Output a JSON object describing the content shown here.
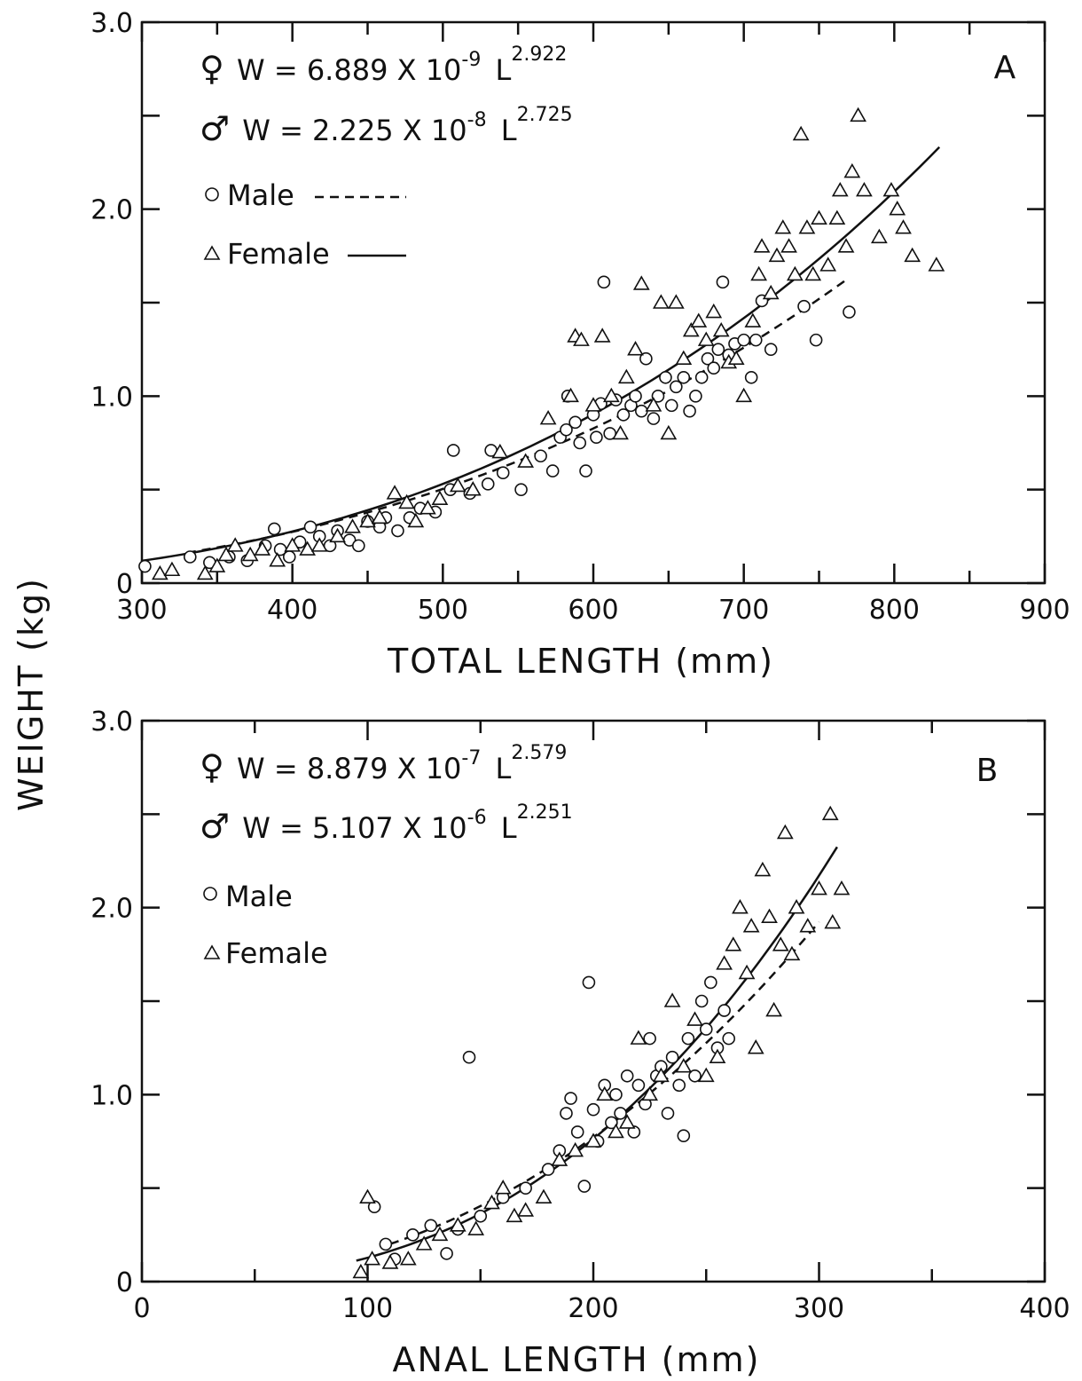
{
  "figure": {
    "ylabel": "WEIGHT (kg)"
  },
  "chart_data": [
    {
      "type": "scatter",
      "panel": "A",
      "xlabel": "TOTAL LENGTH (mm)",
      "ylabel": "WEIGHT (kg)",
      "xlim": [
        300,
        900
      ],
      "ylim": [
        0,
        3.0
      ],
      "x_ticks": [
        300,
        400,
        500,
        600,
        700,
        800,
        900
      ],
      "x_tick_labels": [
        "300",
        "400",
        "500",
        "600",
        "700",
        "800",
        "900"
      ],
      "y_ticks": [
        0,
        1.0,
        2.0,
        3.0
      ],
      "y_tick_labels": [
        "0",
        "1.0",
        "2.0",
        "3.0"
      ],
      "grid": false,
      "legend_position": "top-left",
      "equations": [
        {
          "symbol": "♀",
          "text": "W = 6.889 X 10",
          "exponent": "-9",
          "tail": " L",
          "power": "2.922"
        },
        {
          "symbol": "♂",
          "text": "W = 2.225 X 10",
          "exponent": "-8",
          "tail": " L",
          "power": "2.725"
        }
      ],
      "legend": [
        {
          "label": "Male",
          "marker": "circle",
          "line": "dashed"
        },
        {
          "label": "Female",
          "marker": "triangle",
          "line": "solid"
        }
      ],
      "fits": [
        {
          "name": "Female",
          "a": 6.889e-09,
          "b": 2.922,
          "x_range": [
            300,
            830
          ],
          "style": "solid"
        },
        {
          "name": "Male",
          "a": 2.225e-08,
          "b": 2.725,
          "x_range": [
            330,
            770
          ],
          "style": "dashed"
        }
      ],
      "series": [
        {
          "name": "Male",
          "marker": "circle",
          "points": [
            [
              302,
              0.09
            ],
            [
              332,
              0.14
            ],
            [
              345,
              0.11
            ],
            [
              358,
              0.14
            ],
            [
              370,
              0.12
            ],
            [
              382,
              0.2
            ],
            [
              388,
              0.29
            ],
            [
              392,
              0.18
            ],
            [
              398,
              0.14
            ],
            [
              405,
              0.22
            ],
            [
              412,
              0.3
            ],
            [
              418,
              0.25
            ],
            [
              425,
              0.2
            ],
            [
              430,
              0.28
            ],
            [
              438,
              0.23
            ],
            [
              444,
              0.2
            ],
            [
              450,
              0.33
            ],
            [
              458,
              0.3
            ],
            [
              462,
              0.35
            ],
            [
              470,
              0.28
            ],
            [
              478,
              0.35
            ],
            [
              485,
              0.4
            ],
            [
              495,
              0.38
            ],
            [
              505,
              0.5
            ],
            [
              507,
              0.71
            ],
            [
              518,
              0.48
            ],
            [
              530,
              0.53
            ],
            [
              532,
              0.71
            ],
            [
              540,
              0.59
            ],
            [
              552,
              0.5
            ],
            [
              565,
              0.68
            ],
            [
              573,
              0.6
            ],
            [
              578,
              0.78
            ],
            [
              582,
              0.82
            ],
            [
              583,
              1.0
            ],
            [
              588,
              0.86
            ],
            [
              591,
              0.75
            ],
            [
              595,
              0.6
            ],
            [
              600,
              0.9
            ],
            [
              602,
              0.78
            ],
            [
              605,
              0.96
            ],
            [
              607,
              1.61
            ],
            [
              611,
              0.8
            ],
            [
              615,
              0.98
            ],
            [
              620,
              0.9
            ],
            [
              625,
              0.95
            ],
            [
              628,
              1.0
            ],
            [
              632,
              0.92
            ],
            [
              635,
              1.2
            ],
            [
              640,
              0.88
            ],
            [
              643,
              1.0
            ],
            [
              648,
              1.1
            ],
            [
              652,
              0.95
            ],
            [
              655,
              1.05
            ],
            [
              660,
              1.1
            ],
            [
              664,
              0.92
            ],
            [
              668,
              1.0
            ],
            [
              672,
              1.1
            ],
            [
              676,
              1.2
            ],
            [
              680,
              1.15
            ],
            [
              683,
              1.25
            ],
            [
              686,
              1.61
            ],
            [
              690,
              1.22
            ],
            [
              694,
              1.28
            ],
            [
              700,
              1.3
            ],
            [
              705,
              1.1
            ],
            [
              708,
              1.3
            ],
            [
              712,
              1.51
            ],
            [
              718,
              1.25
            ],
            [
              740,
              1.48
            ],
            [
              748,
              1.3
            ],
            [
              770,
              1.45
            ]
          ]
        },
        {
          "name": "Female",
          "marker": "triangle",
          "points": [
            [
              312,
              0.05
            ],
            [
              320,
              0.07
            ],
            [
              342,
              0.05
            ],
            [
              350,
              0.09
            ],
            [
              356,
              0.15
            ],
            [
              362,
              0.2
            ],
            [
              372,
              0.15
            ],
            [
              380,
              0.18
            ],
            [
              390,
              0.12
            ],
            [
              400,
              0.2
            ],
            [
              410,
              0.18
            ],
            [
              418,
              0.2
            ],
            [
              430,
              0.25
            ],
            [
              440,
              0.3
            ],
            [
              450,
              0.33
            ],
            [
              458,
              0.35
            ],
            [
              468,
              0.48
            ],
            [
              476,
              0.43
            ],
            [
              482,
              0.33
            ],
            [
              490,
              0.4
            ],
            [
              498,
              0.45
            ],
            [
              510,
              0.52
            ],
            [
              520,
              0.5
            ],
            [
              538,
              0.7
            ],
            [
              555,
              0.65
            ],
            [
              570,
              0.88
            ],
            [
              585,
              1.0
            ],
            [
              588,
              1.32
            ],
            [
              592,
              1.3
            ],
            [
              600,
              0.95
            ],
            [
              606,
              1.32
            ],
            [
              612,
              1.0
            ],
            [
              618,
              0.8
            ],
            [
              622,
              1.1
            ],
            [
              628,
              1.25
            ],
            [
              632,
              1.6
            ],
            [
              640,
              0.95
            ],
            [
              645,
              1.5
            ],
            [
              650,
              0.8
            ],
            [
              655,
              1.5
            ],
            [
              660,
              1.2
            ],
            [
              665,
              1.35
            ],
            [
              670,
              1.4
            ],
            [
              675,
              1.3
            ],
            [
              680,
              1.45
            ],
            [
              685,
              1.35
            ],
            [
              690,
              1.18
            ],
            [
              695,
              1.2
            ],
            [
              700,
              1.0
            ],
            [
              706,
              1.4
            ],
            [
              710,
              1.65
            ],
            [
              712,
              1.8
            ],
            [
              718,
              1.55
            ],
            [
              722,
              1.75
            ],
            [
              726,
              1.9
            ],
            [
              730,
              1.8
            ],
            [
              734,
              1.65
            ],
            [
              738,
              2.4
            ],
            [
              742,
              1.9
            ],
            [
              746,
              1.65
            ],
            [
              750,
              1.95
            ],
            [
              756,
              1.7
            ],
            [
              762,
              1.95
            ],
            [
              764,
              2.1
            ],
            [
              768,
              1.8
            ],
            [
              772,
              2.2
            ],
            [
              776,
              2.5
            ],
            [
              780,
              2.1
            ],
            [
              790,
              1.85
            ],
            [
              798,
              2.1
            ],
            [
              802,
              2.0
            ],
            [
              806,
              1.9
            ],
            [
              812,
              1.75
            ],
            [
              828,
              1.7
            ]
          ]
        }
      ]
    },
    {
      "type": "scatter",
      "panel": "B",
      "xlabel": "ANAL LENGTH (mm)",
      "ylabel": "WEIGHT (kg)",
      "xlim": [
        0,
        400
      ],
      "ylim": [
        0,
        3.0
      ],
      "x_ticks": [
        0,
        100,
        200,
        300,
        400
      ],
      "x_tick_labels": [
        "0",
        "100",
        "200",
        "300",
        "400"
      ],
      "y_ticks": [
        0,
        1.0,
        2.0,
        3.0
      ],
      "y_tick_labels": [
        "0",
        "1.0",
        "2.0",
        "3.0"
      ],
      "grid": false,
      "legend_position": "top-left",
      "equations": [
        {
          "symbol": "♀",
          "text": "W = 8.879 X 10",
          "exponent": "-7",
          "tail": " L",
          "power": "2.579"
        },
        {
          "symbol": "♂",
          "text": "W = 5.107 X 10",
          "exponent": "-6",
          "tail": " L",
          "power": "2.251"
        }
      ],
      "legend": [
        {
          "label": "Male",
          "marker": "circle",
          "line": "none"
        },
        {
          "label": "Female",
          "marker": "triangle",
          "line": "none"
        }
      ],
      "fits": [
        {
          "name": "Female",
          "a": 8.879e-07,
          "b": 2.579,
          "x_range": [
            95,
            308
          ],
          "style": "solid"
        },
        {
          "name": "Male",
          "a": 5.107e-06,
          "b": 2.251,
          "x_range": [
            110,
            300
          ],
          "style": "dashed"
        }
      ],
      "series": [
        {
          "name": "Male",
          "marker": "circle",
          "points": [
            [
              103,
              0.4
            ],
            [
              108,
              0.2
            ],
            [
              112,
              0.12
            ],
            [
              120,
              0.25
            ],
            [
              128,
              0.3
            ],
            [
              135,
              0.15
            ],
            [
              140,
              0.28
            ],
            [
              145,
              1.2
            ],
            [
              150,
              0.35
            ],
            [
              160,
              0.45
            ],
            [
              170,
              0.5
            ],
            [
              180,
              0.6
            ],
            [
              185,
              0.7
            ],
            [
              188,
              0.9
            ],
            [
              190,
              0.98
            ],
            [
              193,
              0.8
            ],
            [
              196,
              0.51
            ],
            [
              198,
              1.6
            ],
            [
              200,
              0.92
            ],
            [
              202,
              0.75
            ],
            [
              205,
              1.05
            ],
            [
              208,
              0.85
            ],
            [
              210,
              1.0
            ],
            [
              212,
              0.9
            ],
            [
              215,
              1.1
            ],
            [
              218,
              0.8
            ],
            [
              220,
              1.05
            ],
            [
              223,
              0.95
            ],
            [
              225,
              1.3
            ],
            [
              228,
              1.1
            ],
            [
              230,
              1.15
            ],
            [
              233,
              0.9
            ],
            [
              235,
              1.2
            ],
            [
              238,
              1.05
            ],
            [
              240,
              0.78
            ],
            [
              242,
              1.3
            ],
            [
              245,
              1.1
            ],
            [
              248,
              1.5
            ],
            [
              250,
              1.35
            ],
            [
              252,
              1.6
            ],
            [
              255,
              1.25
            ],
            [
              258,
              1.45
            ],
            [
              260,
              1.3
            ]
          ]
        },
        {
          "name": "Female",
          "marker": "triangle",
          "points": [
            [
              97,
              0.05
            ],
            [
              100,
              0.45
            ],
            [
              102,
              0.12
            ],
            [
              110,
              0.1
            ],
            [
              118,
              0.12
            ],
            [
              125,
              0.2
            ],
            [
              132,
              0.25
            ],
            [
              140,
              0.3
            ],
            [
              148,
              0.28
            ],
            [
              155,
              0.42
            ],
            [
              160,
              0.5
            ],
            [
              165,
              0.35
            ],
            [
              170,
              0.38
            ],
            [
              178,
              0.45
            ],
            [
              185,
              0.65
            ],
            [
              192,
              0.7
            ],
            [
              200,
              0.75
            ],
            [
              205,
              1.0
            ],
            [
              210,
              0.8
            ],
            [
              215,
              0.85
            ],
            [
              220,
              1.3
            ],
            [
              225,
              1.0
            ],
            [
              230,
              1.1
            ],
            [
              235,
              1.5
            ],
            [
              240,
              1.15
            ],
            [
              245,
              1.4
            ],
            [
              250,
              1.1
            ],
            [
              255,
              1.2
            ],
            [
              258,
              1.7
            ],
            [
              262,
              1.8
            ],
            [
              265,
              2.0
            ],
            [
              268,
              1.65
            ],
            [
              270,
              1.9
            ],
            [
              272,
              1.25
            ],
            [
              275,
              2.2
            ],
            [
              278,
              1.95
            ],
            [
              280,
              1.45
            ],
            [
              283,
              1.8
            ],
            [
              285,
              2.4
            ],
            [
              288,
              1.75
            ],
            [
              290,
              2.0
            ],
            [
              295,
              1.9
            ],
            [
              300,
              2.1
            ],
            [
              305,
              2.5
            ],
            [
              306,
              1.92
            ],
            [
              310,
              2.1
            ]
          ]
        }
      ]
    }
  ]
}
